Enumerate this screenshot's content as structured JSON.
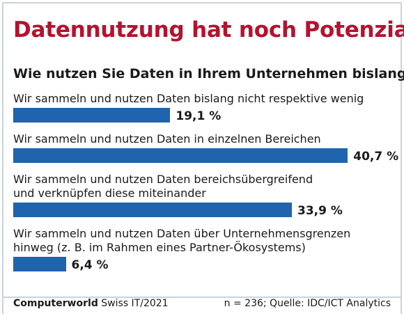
{
  "header": {
    "title": "Datennutzung hat noch Potenzial",
    "subtitle": "Wie nutzen Sie Daten in Ihrem Unternehmen bislang?"
  },
  "chart_data": {
    "type": "bar",
    "orientation": "horizontal",
    "title": "Datennutzung hat noch Potenzial",
    "subtitle": "Wie nutzen Sie Daten in Ihrem Unternehmen bislang?",
    "categories": [
      [
        "Wir sammeln und nutzen Daten bislang nicht respektive wenig"
      ],
      [
        "Wir sammeln und nutzen Daten in einzelnen Bereichen"
      ],
      [
        "Wir sammeln und nutzen Daten bereichsübergreifend",
        "und verknüpfen diese miteinander"
      ],
      [
        "Wir sammeln und nutzen Daten über Unternehmensgrenzen",
        "hinweg (z. B. im Rahmen eines Partner-Ökosystems)"
      ]
    ],
    "values": [
      19.1,
      40.7,
      33.9,
      6.4
    ],
    "value_labels": [
      "19,1 %",
      "40,7 %",
      "33,9 %",
      "6,4 %"
    ],
    "unit": "%",
    "xlim": [
      0,
      50
    ],
    "bar_color": "#1f64ad",
    "grid": false,
    "legend": "none"
  },
  "footer": {
    "brand": "Computerworld",
    "edition": " Swiss IT/2021",
    "source": "n = 236; Quelle: IDC/ICT Analytics"
  },
  "colors": {
    "title": "#b5122f",
    "bar": "#1f64ad",
    "frame": "#c9d4dc"
  }
}
